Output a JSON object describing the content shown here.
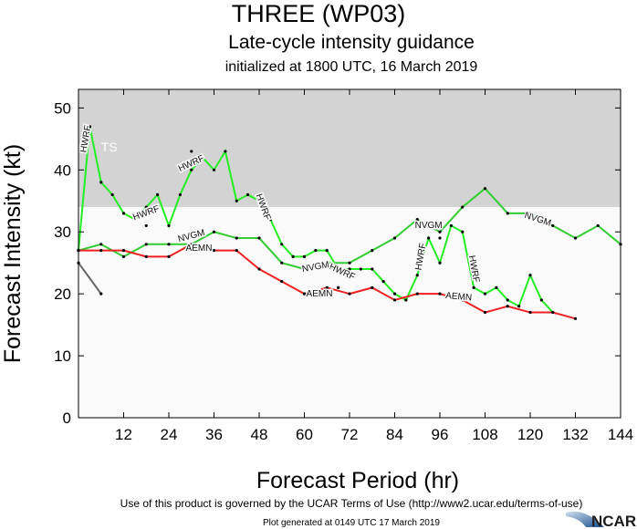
{
  "chart_data": {
    "type": "line",
    "title": "THREE (WP03)",
    "subtitle": "Late-cycle intensity guidance",
    "subtitle2": "initialized at 1800 UTC, 16 March 2019",
    "xlabel": "Forecast Period (hr)",
    "ylabel": "Forecast Intensity (kt)",
    "xlim": [
      0,
      144
    ],
    "ylim": [
      0,
      53
    ],
    "xticks": [
      12,
      24,
      36,
      48,
      60,
      72,
      84,
      96,
      108,
      120,
      132,
      144
    ],
    "yticks": [
      0,
      10,
      20,
      30,
      40,
      50
    ],
    "grid": false,
    "bands": [
      {
        "label": "TS",
        "from": 34,
        "to": 53,
        "color": "#d3d3d3"
      }
    ],
    "background_color": "#fafafa",
    "series": [
      {
        "name": "HWRF",
        "color": "#22ee22",
        "x": [
          0,
          3,
          6,
          9,
          12,
          15,
          18,
          21,
          24,
          27,
          30,
          33,
          36,
          39,
          42,
          45,
          48,
          51,
          54,
          57,
          60,
          63,
          66,
          69,
          72,
          75,
          78,
          81,
          84,
          87,
          90,
          93,
          96,
          99,
          102,
          105,
          108,
          111,
          114,
          117,
          120,
          123,
          126
        ],
        "y": [
          27,
          47,
          38,
          36,
          33,
          32,
          34,
          36,
          31,
          36,
          40,
          42,
          40,
          43,
          35,
          36,
          35,
          32,
          28,
          26,
          26,
          27,
          27,
          24,
          24,
          24,
          24,
          22,
          20,
          19,
          23,
          29,
          25,
          31,
          30,
          21,
          20,
          21,
          19,
          18,
          23,
          19,
          17
        ]
      },
      {
        "name": "NVGM",
        "color": "#33cc33",
        "x": [
          0,
          6,
          12,
          18,
          24,
          30,
          36,
          42,
          48,
          54,
          60,
          66,
          72,
          78,
          84,
          90,
          96,
          102,
          108,
          114,
          120,
          126,
          132,
          138,
          144
        ],
        "y": [
          27,
          28,
          26,
          28,
          28,
          28,
          30,
          29,
          29,
          25,
          24,
          25,
          25,
          27,
          29,
          32,
          30,
          34,
          37,
          33,
          33,
          31,
          29,
          31,
          28
        ]
      },
      {
        "name": "AEMN",
        "color": "#ee2222",
        "x": [
          0,
          6,
          12,
          18,
          24,
          30,
          36,
          42,
          48,
          54,
          60,
          66,
          72,
          78,
          84,
          90,
          96,
          102,
          108,
          114,
          120,
          126,
          132
        ],
        "y": [
          27,
          27,
          27,
          26,
          26,
          28,
          27,
          27,
          24,
          22,
          20,
          21,
          20,
          21,
          19,
          20,
          20,
          19,
          17,
          18,
          17,
          17,
          16
        ]
      },
      {
        "color": "#666666",
        "x": [
          0,
          6
        ],
        "y": [
          25,
          20
        ]
      }
    ],
    "extra_points": {
      "x": [
        18,
        30,
        96,
        69
      ],
      "y": [
        31,
        43,
        29,
        21
      ]
    },
    "annotations": [
      {
        "text": "HWRF",
        "x": 2,
        "y": 45,
        "rotate": -80
      },
      {
        "text": "HWRF",
        "x": 18,
        "y": 33,
        "rotate": -20
      },
      {
        "text": "HWRF",
        "x": 30,
        "y": 41,
        "rotate": -25
      },
      {
        "text": "HWRF",
        "x": 49,
        "y": 34,
        "rotate": 70
      },
      {
        "text": "HWRF",
        "x": 70,
        "y": 23.5,
        "rotate": 25
      },
      {
        "text": "HWRF",
        "x": 91,
        "y": 26,
        "rotate": -80
      },
      {
        "text": "HWRF",
        "x": 105,
        "y": 24,
        "rotate": 80
      },
      {
        "text": "NVGM",
        "x": 30,
        "y": 29.3,
        "rotate": -15
      },
      {
        "text": "NVGM",
        "x": 63,
        "y": 24.3,
        "rotate": -10
      },
      {
        "text": "NVGM",
        "x": 93,
        "y": 31,
        "rotate": 0
      },
      {
        "text": "NVGM",
        "x": 122,
        "y": 32,
        "rotate": 18
      },
      {
        "text": "AEMN",
        "x": 32,
        "y": 27.3,
        "rotate": 0
      },
      {
        "text": "AEMN",
        "x": 64,
        "y": 20,
        "rotate": 0
      },
      {
        "text": "AEMN",
        "x": 101,
        "y": 19.5,
        "rotate": 5
      }
    ]
  },
  "footer": {
    "terms": "Use of this product is governed by the UCAR Terms of Use (http://www2.ucar.edu/terms-of-use)",
    "generated": "Plot generated at 0149 UTC   17 March 2019",
    "logo": "NCAR"
  }
}
